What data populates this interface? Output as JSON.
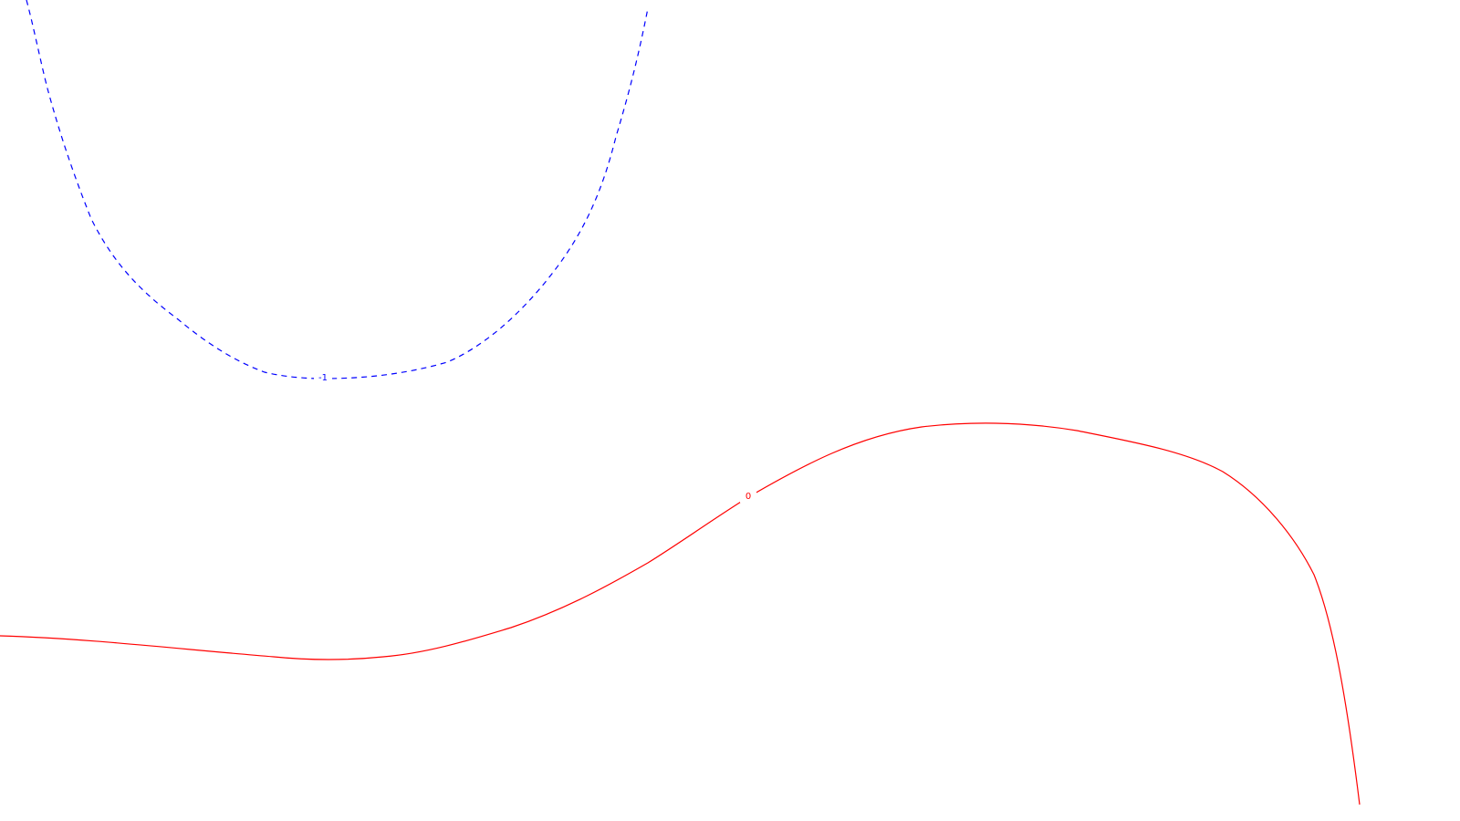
{
  "chart_data": {
    "type": "contour",
    "title": "",
    "xlabel": "",
    "ylabel": "",
    "grid": false,
    "legend": "none",
    "contours": [
      {
        "name": "contour-level-minus-1",
        "level": -1,
        "label": "-1",
        "color": "#0000ff",
        "line_style": "dashed",
        "shape": "u-curve-open-top",
        "region": "upper-left"
      },
      {
        "name": "contour-level-0",
        "level": 0,
        "label": "0",
        "color": "#ff0000",
        "line_style": "solid",
        "shape": "wave",
        "region": "lower"
      }
    ]
  }
}
